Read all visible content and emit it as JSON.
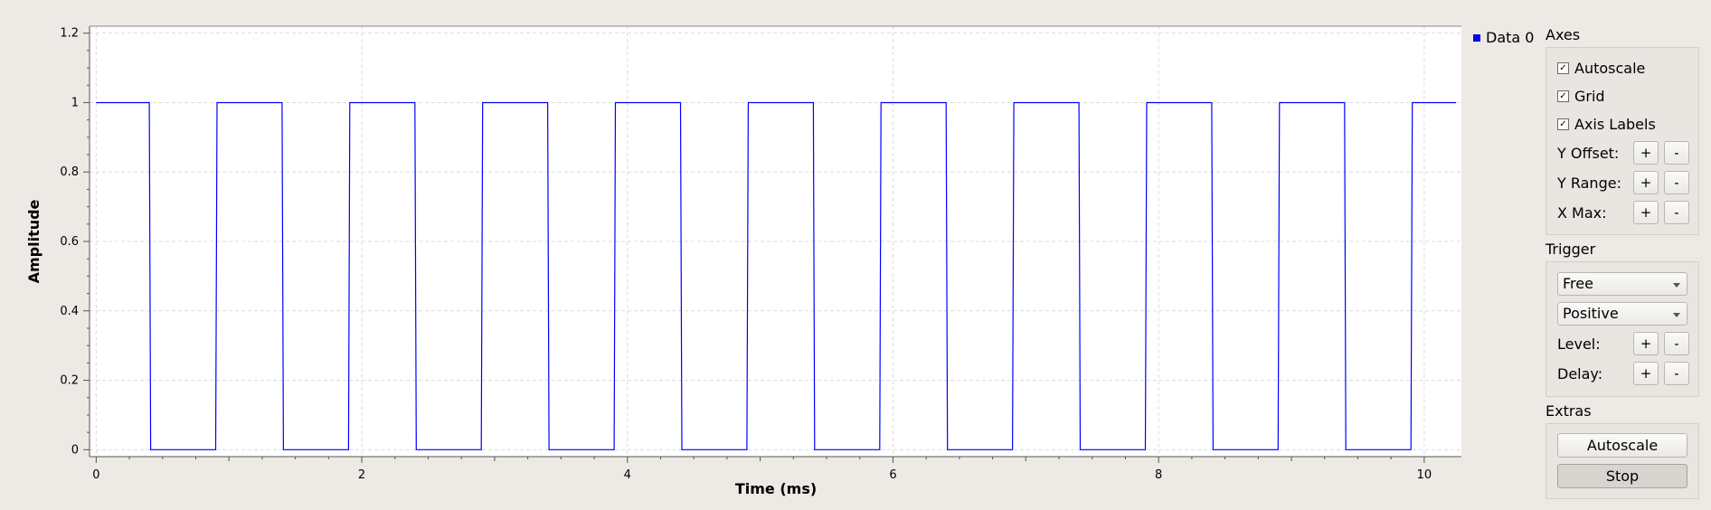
{
  "legend": {
    "label": "Data 0",
    "color": "#0000ff"
  },
  "axes_section": {
    "title": "Axes",
    "autoscale_label": "Autoscale",
    "grid_label": "Grid",
    "axis_labels_label": "Axis Labels",
    "y_offset_label": "Y Offset:",
    "y_range_label": "Y Range:",
    "x_max_label": "X Max:",
    "plus": "+",
    "minus": "-",
    "checked_mark": "✓"
  },
  "trigger_section": {
    "title": "Trigger",
    "mode_value": "Free",
    "slope_value": "Positive",
    "level_label": "Level:",
    "delay_label": "Delay:",
    "plus": "+",
    "minus": "-"
  },
  "extras_section": {
    "title": "Extras",
    "autoscale_button": "Autoscale",
    "stop_button": "Stop"
  },
  "chart_data": {
    "type": "line",
    "title": "",
    "xlabel": "Time (ms)",
    "ylabel": "Amplitude",
    "xlim": [
      -0.05,
      10.28
    ],
    "ylim": [
      -0.02,
      1.22
    ],
    "xticks": [
      0,
      2,
      4,
      6,
      8,
      10
    ],
    "xtick_labels": [
      "0",
      "2",
      "4",
      "6",
      "8",
      "10"
    ],
    "yticks": [
      0,
      0.2,
      0.4,
      0.6,
      0.8,
      1,
      1.2
    ],
    "ytick_labels": [
      "0",
      "0.2",
      "0.4",
      "0.6",
      "0.8",
      "1",
      "1.2"
    ],
    "grid": true,
    "legend_position": "top-right outside",
    "series": [
      {
        "name": "Data 0",
        "color": "#0000ff",
        "x": [
          0,
          0.4,
          0.41,
          0.9,
          0.91,
          1.4,
          1.41,
          1.9,
          1.91,
          2.4,
          2.41,
          2.9,
          2.91,
          3.4,
          3.41,
          3.9,
          3.91,
          4.4,
          4.41,
          4.9,
          4.91,
          5.4,
          5.41,
          5.9,
          5.91,
          6.4,
          6.41,
          6.9,
          6.91,
          7.4,
          7.41,
          7.9,
          7.91,
          8.4,
          8.41,
          8.9,
          8.91,
          9.4,
          9.41,
          9.9,
          9.91,
          10.24
        ],
        "y": [
          1,
          1,
          0,
          0,
          1,
          1,
          0,
          0,
          1,
          1,
          0,
          0,
          1,
          1,
          0,
          0,
          1,
          1,
          0,
          0,
          1,
          1,
          0,
          0,
          1,
          1,
          0,
          0,
          1,
          1,
          0,
          0,
          1,
          1,
          0,
          0,
          1,
          1,
          0,
          0,
          1,
          1
        ]
      }
    ]
  }
}
